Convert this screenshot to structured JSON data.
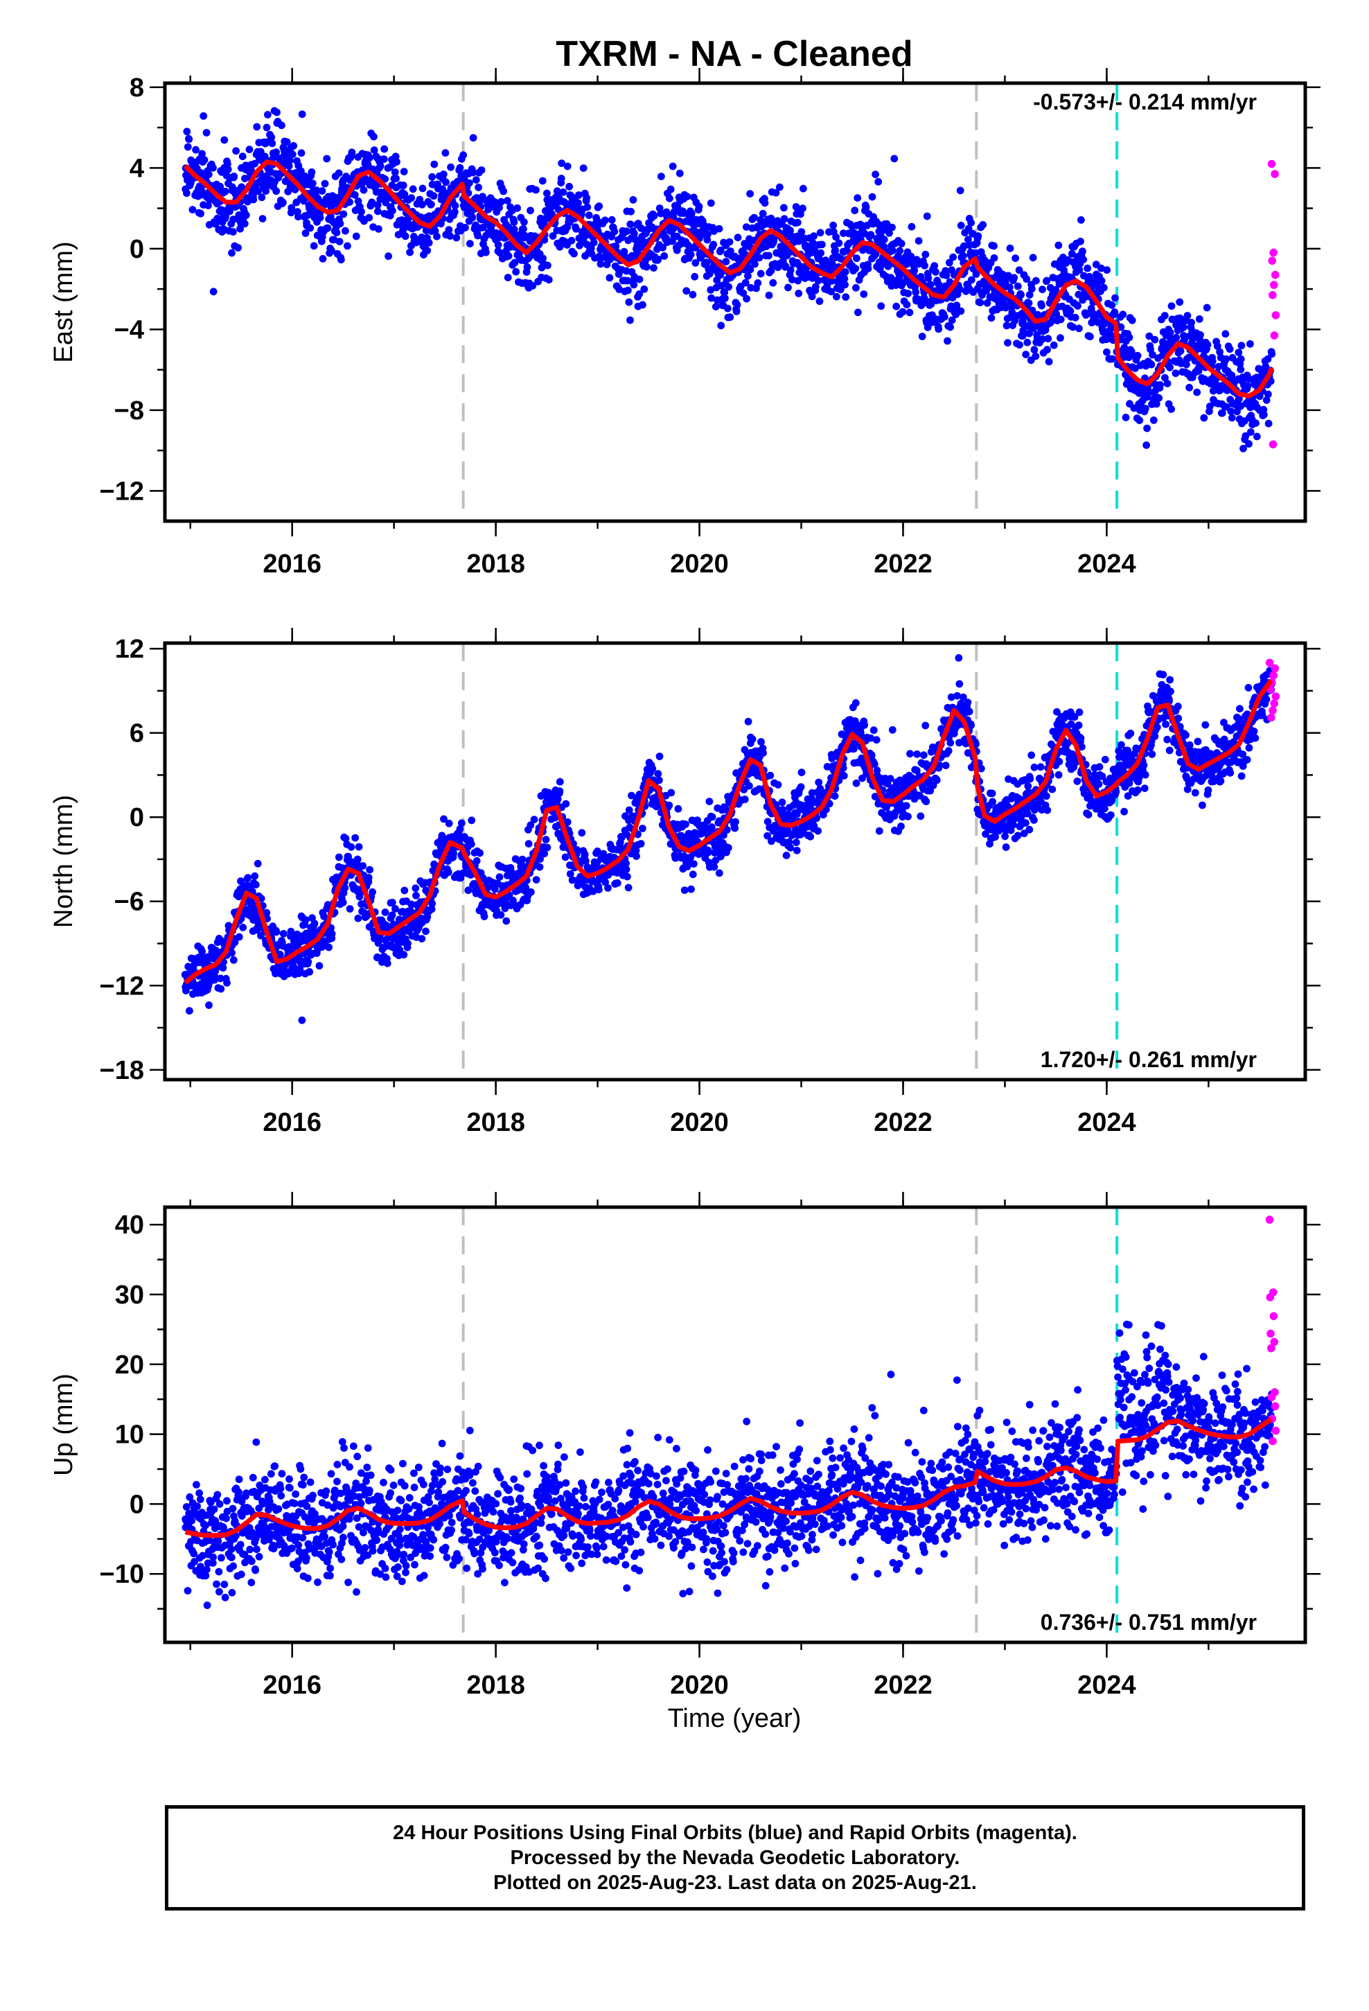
{
  "title": "TXRM  - NA - Cleaned",
  "xlabel": "Time (year)",
  "footer": {
    "lines": [
      "24 Hour Positions Using Final Orbits (blue) and Rapid Orbits (magenta).",
      "Processed by the Nevada Geodetic Laboratory.",
      "Plotted on 2025-Aug-23. Last data on 2025-Aug-21."
    ]
  },
  "colors": {
    "final_orbits": "#0000ff",
    "rapid_orbits": "#ff00ff",
    "model": "#ff0000",
    "equipment_change": "#c0c0c0",
    "event": "#00e0e0"
  },
  "chart_data": [
    {
      "type": "scatter",
      "ylabel": "East (mm)",
      "rate_label": "-0.573+/- 0.214 mm/yr",
      "rate_position": "top-right",
      "xlim": [
        2014.75,
        2025.95
      ],
      "ylim": [
        -13.5,
        8.2
      ],
      "xticks": [
        2016,
        2018,
        2020,
        2022,
        2024
      ],
      "yticks": [
        -12,
        -8,
        -4,
        0,
        4,
        8
      ],
      "grid": false,
      "vlines_gray": [
        2017.68,
        2022.72
      ],
      "vline_cyan": 2024.1,
      "rapid_x_range": [
        2025.62,
        2025.66
      ],
      "rapid_y": [
        4.2,
        3.7,
        -0.2,
        -0.6,
        -1.3,
        -1.8,
        -2.3,
        -3.3,
        -4.3,
        -9.7
      ],
      "model_x": [
        2014.95,
        2015.05,
        2015.15,
        2015.25,
        2015.35,
        2015.45,
        2015.55,
        2015.65,
        2015.75,
        2015.85,
        2015.95,
        2016.05,
        2016.15,
        2016.25,
        2016.35,
        2016.45,
        2016.55,
        2016.65,
        2016.75,
        2016.85,
        2016.95,
        2017.05,
        2017.15,
        2017.25,
        2017.35,
        2017.45,
        2017.55,
        2017.67,
        2017.69,
        2017.8,
        2017.9,
        2018.0,
        2018.1,
        2018.2,
        2018.3,
        2018.4,
        2018.5,
        2018.6,
        2018.7,
        2018.8,
        2018.9,
        2019.0,
        2019.1,
        2019.2,
        2019.3,
        2019.4,
        2019.5,
        2019.6,
        2019.7,
        2019.8,
        2019.9,
        2020.0,
        2020.1,
        2020.2,
        2020.3,
        2020.4,
        2020.5,
        2020.6,
        2020.7,
        2020.8,
        2020.9,
        2021.0,
        2021.1,
        2021.2,
        2021.3,
        2021.4,
        2021.5,
        2021.6,
        2021.7,
        2021.8,
        2021.9,
        2022.0,
        2022.1,
        2022.2,
        2022.3,
        2022.4,
        2022.5,
        2022.6,
        2022.71,
        2022.73,
        2022.8,
        2022.9,
        2023.0,
        2023.1,
        2023.2,
        2023.3,
        2023.4,
        2023.5,
        2023.6,
        2023.7,
        2023.8,
        2023.9,
        2024.0,
        2024.09,
        2024.11,
        2024.2,
        2024.3,
        2024.4,
        2024.5,
        2024.6,
        2024.7,
        2024.8,
        2024.9,
        2025.0,
        2025.1,
        2025.2,
        2025.3,
        2025.4,
        2025.5,
        2025.6,
        2025.62
      ],
      "model_y": [
        4.1,
        3.6,
        3.2,
        2.7,
        2.3,
        2.3,
        2.9,
        3.8,
        4.3,
        4.2,
        3.7,
        3.2,
        2.6,
        2.1,
        1.8,
        1.9,
        2.7,
        3.6,
        3.8,
        3.4,
        2.9,
        2.3,
        1.8,
        1.3,
        1.1,
        1.6,
        2.5,
        3.2,
        2.6,
        2.1,
        1.6,
        1.3,
        0.8,
        0.2,
        -0.2,
        0.3,
        1.0,
        1.6,
        1.9,
        1.6,
        1.1,
        0.6,
        0.1,
        -0.4,
        -0.8,
        -0.6,
        0.1,
        0.9,
        1.4,
        1.2,
        0.7,
        0.2,
        -0.3,
        -0.8,
        -1.2,
        -1.0,
        -0.3,
        0.5,
        0.9,
        0.6,
        0.1,
        -0.4,
        -0.9,
        -1.2,
        -1.4,
        -0.9,
        -0.2,
        0.3,
        0.2,
        -0.2,
        -0.6,
        -1.0,
        -1.5,
        -1.9,
        -2.3,
        -2.4,
        -1.8,
        -0.9,
        -0.5,
        -0.9,
        -1.3,
        -1.8,
        -2.2,
        -2.5,
        -3.0,
        -3.6,
        -3.5,
        -2.6,
        -1.8,
        -1.6,
        -1.9,
        -2.6,
        -3.4,
        -3.7,
        -5.4,
        -6.0,
        -6.5,
        -6.7,
        -6.2,
        -5.3,
        -4.7,
        -4.9,
        -5.4,
        -5.9,
        -6.3,
        -6.7,
        -7.2,
        -7.3,
        -7.0,
        -6.2,
        -5.9
      ]
    },
    {
      "type": "scatter",
      "ylabel": "North (mm)",
      "rate_label": "1.720+/- 0.261 mm/yr",
      "rate_position": "bottom-right",
      "xlim": [
        2014.75,
        2025.95
      ],
      "ylim": [
        -18.7,
        12.4
      ],
      "xticks": [
        2016,
        2018,
        2020,
        2022,
        2024
      ],
      "yticks": [
        -18,
        -12,
        -6,
        0,
        6,
        12
      ],
      "grid": false,
      "vlines_gray": [
        2017.68,
        2022.72
      ],
      "vline_cyan": 2024.1,
      "rapid_x_range": [
        2025.6,
        2025.66
      ],
      "rapid_y": [
        11.0,
        10.6,
        10.1,
        9.6,
        9.1,
        8.6,
        8.1,
        7.6,
        7.1
      ],
      "model_x": [
        2014.95,
        2015.05,
        2015.15,
        2015.25,
        2015.35,
        2015.45,
        2015.55,
        2015.65,
        2015.75,
        2015.85,
        2015.95,
        2016.05,
        2016.15,
        2016.25,
        2016.35,
        2016.45,
        2016.55,
        2016.65,
        2016.75,
        2016.85,
        2016.95,
        2017.05,
        2017.15,
        2017.25,
        2017.35,
        2017.45,
        2017.55,
        2017.67,
        2017.69,
        2017.8,
        2017.9,
        2018.0,
        2018.1,
        2018.2,
        2018.3,
        2018.4,
        2018.5,
        2018.6,
        2018.7,
        2018.8,
        2018.9,
        2019.0,
        2019.1,
        2019.2,
        2019.3,
        2019.4,
        2019.5,
        2019.6,
        2019.7,
        2019.8,
        2019.9,
        2020.0,
        2020.1,
        2020.2,
        2020.3,
        2020.4,
        2020.5,
        2020.6,
        2020.7,
        2020.8,
        2020.9,
        2021.0,
        2021.1,
        2021.2,
        2021.3,
        2021.4,
        2021.5,
        2021.6,
        2021.7,
        2021.8,
        2021.9,
        2022.0,
        2022.1,
        2022.2,
        2022.3,
        2022.4,
        2022.5,
        2022.6,
        2022.71,
        2022.73,
        2022.8,
        2022.9,
        2023.0,
        2023.1,
        2023.2,
        2023.3,
        2023.4,
        2023.5,
        2023.6,
        2023.7,
        2023.8,
        2023.9,
        2024.0,
        2024.09,
        2024.11,
        2024.2,
        2024.3,
        2024.4,
        2024.5,
        2024.6,
        2024.7,
        2024.8,
        2024.9,
        2025.0,
        2025.1,
        2025.2,
        2025.3,
        2025.4,
        2025.5,
        2025.6,
        2025.62
      ],
      "model_y": [
        -11.8,
        -11.2,
        -10.8,
        -10.5,
        -9.6,
        -7.3,
        -5.4,
        -5.8,
        -8.2,
        -10.3,
        -10.1,
        -9.6,
        -9.2,
        -8.7,
        -7.6,
        -5.1,
        -3.7,
        -4.0,
        -6.0,
        -8.2,
        -8.3,
        -7.8,
        -7.3,
        -6.8,
        -5.6,
        -3.4,
        -1.8,
        -2.2,
        -2.6,
        -4.0,
        -5.5,
        -5.7,
        -5.3,
        -4.8,
        -4.2,
        -2.4,
        0.5,
        0.7,
        -1.5,
        -3.5,
        -4.2,
        -4.0,
        -3.6,
        -3.1,
        -2.3,
        -0.1,
        2.6,
        2.0,
        -0.7,
        -2.1,
        -2.4,
        -2.0,
        -1.5,
        -1.0,
        0.2,
        2.4,
        4.1,
        3.7,
        0.9,
        -0.5,
        -0.6,
        -0.3,
        0.1,
        0.7,
        2.0,
        4.4,
        5.9,
        5.3,
        2.8,
        1.2,
        1.1,
        1.6,
        2.2,
        2.7,
        3.6,
        5.7,
        7.6,
        6.8,
        4.2,
        2.2,
        0.1,
        -0.3,
        0.2,
        0.6,
        1.1,
        1.6,
        2.5,
        4.8,
        6.2,
        5.1,
        2.6,
        1.5,
        1.8,
        2.3,
        2.5,
        3.0,
        3.8,
        5.6,
        7.8,
        8.0,
        5.8,
        3.8,
        3.4,
        3.8,
        4.2,
        4.6,
        5.2,
        6.8,
        8.6,
        9.6,
        9.7
      ]
    },
    {
      "type": "scatter",
      "ylabel": "Up (mm)",
      "rate_label": "0.736+/- 0.751 mm/yr",
      "rate_position": "bottom-right",
      "xlim": [
        2014.75,
        2025.95
      ],
      "ylim": [
        -19.8,
        42.5
      ],
      "xticks": [
        2016,
        2018,
        2020,
        2022,
        2024
      ],
      "yticks": [
        -10,
        0,
        10,
        20,
        30,
        40
      ],
      "grid": false,
      "vlines_gray": [
        2017.68,
        2022.72
      ],
      "vline_cyan": 2024.1,
      "rapid_x_range": [
        2025.6,
        2025.66
      ],
      "rapid_y": [
        40.7,
        30.3,
        29.6,
        26.9,
        24.4,
        23.2,
        22.3,
        16.0,
        15.3,
        14.0,
        12.2,
        10.5,
        9.0
      ],
      "model_x": [
        2014.95,
        2015.05,
        2015.15,
        2015.25,
        2015.35,
        2015.45,
        2015.55,
        2015.65,
        2015.75,
        2015.85,
        2015.95,
        2016.05,
        2016.15,
        2016.25,
        2016.35,
        2016.45,
        2016.55,
        2016.65,
        2016.75,
        2016.85,
        2016.95,
        2017.05,
        2017.15,
        2017.25,
        2017.35,
        2017.45,
        2017.55,
        2017.67,
        2017.69,
        2017.8,
        2017.9,
        2018.0,
        2018.1,
        2018.2,
        2018.3,
        2018.4,
        2018.5,
        2018.6,
        2018.7,
        2018.8,
        2018.9,
        2019.0,
        2019.1,
        2019.2,
        2019.3,
        2019.4,
        2019.5,
        2019.6,
        2019.7,
        2019.8,
        2019.9,
        2020.0,
        2020.1,
        2020.2,
        2020.3,
        2020.4,
        2020.5,
        2020.6,
        2020.7,
        2020.8,
        2020.9,
        2021.0,
        2021.1,
        2021.2,
        2021.3,
        2021.4,
        2021.5,
        2021.6,
        2021.7,
        2021.8,
        2021.9,
        2022.0,
        2022.1,
        2022.2,
        2022.3,
        2022.4,
        2022.5,
        2022.6,
        2022.71,
        2022.73,
        2022.8,
        2022.9,
        2023.0,
        2023.1,
        2023.2,
        2023.3,
        2023.4,
        2023.5,
        2023.6,
        2023.7,
        2023.8,
        2023.9,
        2024.0,
        2024.09,
        2024.11,
        2024.2,
        2024.3,
        2024.4,
        2024.5,
        2024.6,
        2024.7,
        2024.8,
        2024.9,
        2025.0,
        2025.1,
        2025.2,
        2025.3,
        2025.4,
        2025.5,
        2025.6,
        2025.62
      ],
      "model_y": [
        -4.0,
        -4.3,
        -4.5,
        -4.5,
        -4.4,
        -3.8,
        -2.7,
        -1.5,
        -1.6,
        -2.3,
        -2.9,
        -3.3,
        -3.5,
        -3.5,
        -3.1,
        -2.1,
        -0.9,
        -0.6,
        -1.3,
        -2.2,
        -2.7,
        -2.8,
        -2.8,
        -2.7,
        -2.3,
        -1.4,
        -0.3,
        0.5,
        -1.2,
        -2.2,
        -2.9,
        -3.3,
        -3.4,
        -3.3,
        -2.8,
        -1.7,
        -0.6,
        -0.7,
        -1.7,
        -2.5,
        -2.8,
        -2.7,
        -2.6,
        -2.3,
        -1.6,
        -0.4,
        0.4,
        0.0,
        -1.0,
        -1.8,
        -2.1,
        -2.1,
        -2.0,
        -1.7,
        -1.0,
        0.0,
        0.8,
        0.4,
        -0.4,
        -1.0,
        -1.3,
        -1.3,
        -1.2,
        -0.9,
        -0.1,
        1.0,
        1.7,
        1.3,
        0.4,
        -0.2,
        -0.5,
        -0.6,
        -0.5,
        -0.2,
        0.6,
        1.7,
        2.4,
        2.6,
        3.1,
        4.7,
        4.1,
        3.3,
        2.9,
        2.8,
        2.9,
        3.2,
        3.9,
        4.9,
        5.2,
        4.7,
        3.9,
        3.5,
        3.2,
        3.3,
        9.0,
        9.1,
        9.2,
        9.7,
        10.7,
        11.7,
        11.9,
        11.2,
        10.6,
        10.1,
        9.8,
        9.6,
        9.6,
        10.0,
        11.0,
        12.0,
        12.1
      ]
    }
  ]
}
